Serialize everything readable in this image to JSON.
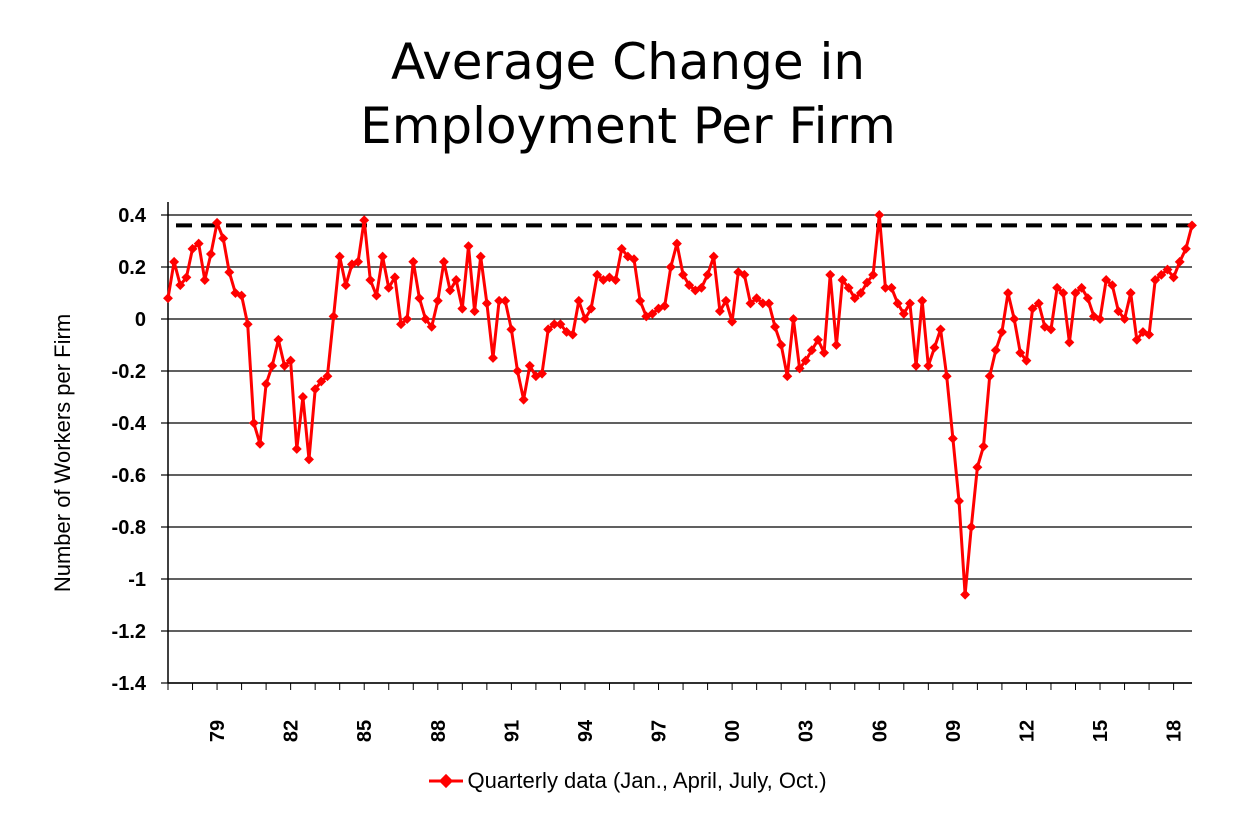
{
  "title_line1": "Average Change in",
  "title_line2": "Employment Per Firm",
  "chart_data": {
    "type": "line",
    "ylabel": "Number of Workers per Firm",
    "xlabel": "",
    "ylim": [
      -1.4,
      0.45
    ],
    "yticks": [
      0.4,
      0.2,
      0,
      -0.2,
      -0.4,
      -0.6,
      -0.8,
      -1,
      -1.2,
      -1.4
    ],
    "ytick_labels": [
      "0.4",
      "0.2",
      "0",
      "-0.2",
      "-0.4",
      "-0.6",
      "-0.8",
      "-1",
      "-1.2",
      "-1.4"
    ],
    "xtick_labels": [
      "79",
      "82",
      "85",
      "88",
      "91",
      "94",
      "97",
      "00",
      "03",
      "06",
      "09",
      "12",
      "15",
      "18"
    ],
    "xtick_years": [
      1979,
      1982,
      1985,
      1988,
      1991,
      1994,
      1997,
      2000,
      2003,
      2006,
      2009,
      2012,
      2015,
      2018
    ],
    "x_start": 1977.0,
    "x_end": 2018.75,
    "x_step": 0.25,
    "reference_line": 0.36,
    "grid": true,
    "legend_position": "bottom",
    "series": [
      {
        "name": "Quarterly data (Jan., April, July, Oct.)",
        "color": "#ff0000",
        "values": [
          0.08,
          0.22,
          0.13,
          0.16,
          0.27,
          0.29,
          0.15,
          0.25,
          0.37,
          0.31,
          0.18,
          0.1,
          0.09,
          -0.02,
          -0.4,
          -0.48,
          -0.25,
          -0.18,
          -0.08,
          -0.18,
          -0.16,
          -0.5,
          -0.3,
          -0.54,
          -0.27,
          -0.24,
          -0.22,
          0.01,
          0.24,
          0.13,
          0.21,
          0.22,
          0.38,
          0.15,
          0.09,
          0.24,
          0.12,
          0.16,
          -0.02,
          0.0,
          0.22,
          0.08,
          0.0,
          -0.03,
          0.07,
          0.22,
          0.11,
          0.15,
          0.04,
          0.28,
          0.03,
          0.24,
          0.06,
          -0.15,
          0.07,
          0.07,
          -0.04,
          -0.2,
          -0.31,
          -0.18,
          -0.22,
          -0.21,
          -0.04,
          -0.02,
          -0.02,
          -0.05,
          -0.06,
          0.07,
          0.0,
          0.04,
          0.17,
          0.15,
          0.16,
          0.15,
          0.27,
          0.24,
          0.23,
          0.07,
          0.01,
          0.02,
          0.04,
          0.05,
          0.2,
          0.29,
          0.17,
          0.13,
          0.11,
          0.12,
          0.17,
          0.24,
          0.03,
          0.07,
          -0.01,
          0.18,
          0.17,
          0.06,
          0.08,
          0.06,
          0.06,
          -0.03,
          -0.1,
          -0.22,
          0.0,
          -0.19,
          -0.16,
          -0.12,
          -0.08,
          -0.13,
          0.17,
          -0.1,
          0.15,
          0.12,
          0.08,
          0.1,
          0.14,
          0.17,
          0.4,
          0.12,
          0.12,
          0.06,
          0.02,
          0.06,
          -0.18,
          0.07,
          -0.18,
          -0.11,
          -0.04,
          -0.22,
          -0.46,
          -0.7,
          -1.06,
          -0.8,
          -0.57,
          -0.49,
          -0.22,
          -0.12,
          -0.05,
          0.1,
          0.0,
          -0.13,
          -0.16,
          0.04,
          0.06,
          -0.03,
          -0.04,
          0.12,
          0.1,
          -0.09,
          0.1,
          0.12,
          0.08,
          0.01,
          0.0,
          0.15,
          0.13,
          0.03,
          0.0,
          0.1,
          -0.08,
          -0.05,
          -0.06,
          0.15,
          0.17,
          0.19,
          0.16,
          0.22,
          0.27,
          0.36
        ]
      }
    ]
  }
}
